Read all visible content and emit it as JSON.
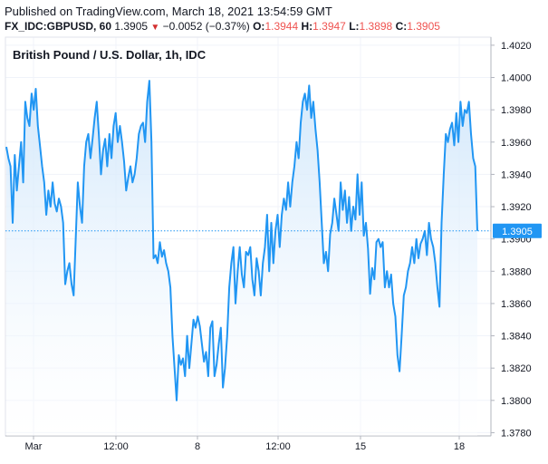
{
  "header": {
    "published": "Published on TradingView.com, March 18, 2021 13:54:59 GMT",
    "symbol": "FX_IDC:GBPUSD, 60",
    "last": "1.3905",
    "change": "−0.0052 (−0.37%)",
    "o_label": "O:",
    "o_value": "1.3944",
    "h_label": "H:",
    "h_value": "1.3947",
    "l_label": "L:",
    "l_value": "1.3898",
    "c_label": "C:",
    "c_value": "1.3905"
  },
  "colors": {
    "line": "#2196f3",
    "fill_top": "#cfe6fb",
    "grid": "#f0f3fa",
    "price_tag": "#2196f3",
    "down": "#ef5350"
  },
  "chart_data": {
    "type": "area",
    "title": "British Pound / U.S. Dollar, 1h, IDC",
    "y_ticks": [
      "1.4020",
      "1.4000",
      "1.3980",
      "1.3960",
      "1.3940",
      "1.3920",
      "1.3900",
      "1.3880",
      "1.3860",
      "1.3840",
      "1.3820",
      "1.3800",
      "1.3780"
    ],
    "ylim": [
      1.3778,
      1.4025
    ],
    "x_ticks": [
      "Mar",
      "12:00",
      "8",
      "12:00",
      "15",
      "18"
    ],
    "last_price_label": "1.3905",
    "last_price": 1.3905,
    "series": [
      {
        "values": [
          1.3957,
          1.395,
          1.3945,
          1.391,
          1.3952,
          1.393,
          1.3945,
          1.396,
          1.3935,
          1.3985,
          1.3975,
          1.397,
          1.399,
          1.398,
          1.3993,
          1.397,
          1.3958,
          1.3945,
          1.3935,
          1.3915,
          1.393,
          1.392,
          1.3935,
          1.3922,
          1.3917,
          1.3925,
          1.392,
          1.391,
          1.3872,
          1.388,
          1.3885,
          1.3872,
          1.3865,
          1.39,
          1.3935,
          1.392,
          1.391,
          1.3945,
          1.396,
          1.3965,
          1.395,
          1.3962,
          1.3975,
          1.3985,
          1.3965,
          1.394,
          1.3955,
          1.3962,
          1.3945,
          1.3965,
          1.395,
          1.397,
          1.3978,
          1.396,
          1.397,
          1.396,
          1.3948,
          1.393,
          1.3938,
          1.3945,
          1.3935,
          1.394,
          1.395,
          1.3965,
          1.397,
          1.3972,
          1.396,
          1.3985,
          1.3998,
          1.396,
          1.3888,
          1.389,
          1.3885,
          1.3898,
          1.3889,
          1.3893,
          1.3885,
          1.388,
          1.387,
          1.384,
          1.382,
          1.38,
          1.3828,
          1.3822,
          1.3826,
          1.3815,
          1.384,
          1.382,
          1.3835,
          1.385,
          1.3845,
          1.3852,
          1.3846,
          1.3835,
          1.3824,
          1.383,
          1.3815,
          1.3845,
          1.3849,
          1.3815,
          1.3822,
          1.3835,
          1.3845,
          1.3808,
          1.382,
          1.384,
          1.387,
          1.3885,
          1.3895,
          1.386,
          1.388,
          1.3895,
          1.3878,
          1.387,
          1.3892,
          1.389,
          1.3895,
          1.3875,
          1.3865,
          1.3888,
          1.388,
          1.3865,
          1.3885,
          1.3895,
          1.3915,
          1.388,
          1.391,
          1.3885,
          1.3905,
          1.3915,
          1.3895,
          1.3915,
          1.3925,
          1.3918,
          1.3935,
          1.392,
          1.3935,
          1.3945,
          1.396,
          1.395,
          1.3972,
          1.3985,
          1.399,
          1.398,
          1.3995,
          1.3975,
          1.3985,
          1.3968,
          1.3955,
          1.3935,
          1.391,
          1.3885,
          1.3892,
          1.388,
          1.3903,
          1.391,
          1.3925,
          1.3915,
          1.3905,
          1.3935,
          1.3918,
          1.393,
          1.391,
          1.3926,
          1.3905,
          1.392,
          1.3912,
          1.394,
          1.3915,
          1.3935,
          1.3902,
          1.391,
          1.3894,
          1.3866,
          1.3882,
          1.3875,
          1.3898,
          1.39,
          1.3895,
          1.3898,
          1.387,
          1.388,
          1.387,
          1.3878,
          1.386,
          1.3852,
          1.3828,
          1.3818,
          1.384,
          1.3865,
          1.387,
          1.388,
          1.3885,
          1.3895,
          1.3885,
          1.39,
          1.3888,
          1.3897,
          1.39,
          1.3905,
          1.389,
          1.391,
          1.39,
          1.3895,
          1.3885,
          1.387,
          1.3858,
          1.391,
          1.394,
          1.3965,
          1.396,
          1.3968,
          1.3972,
          1.3958,
          1.3978,
          1.396,
          1.3985,
          1.397,
          1.398,
          1.3978,
          1.3985,
          1.3965,
          1.395,
          1.3945,
          1.3905
        ]
      }
    ]
  }
}
